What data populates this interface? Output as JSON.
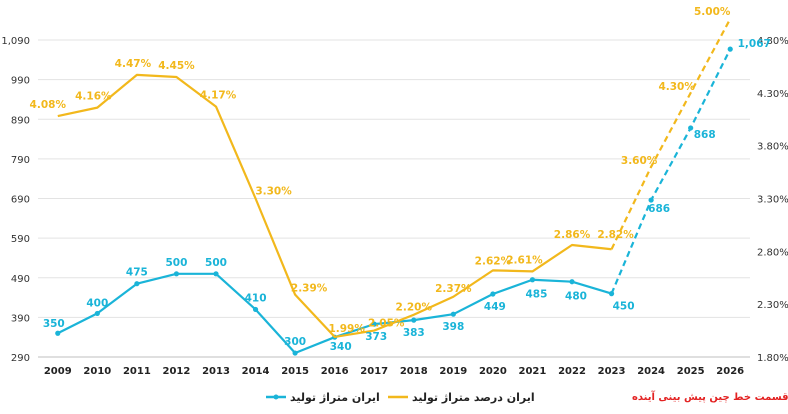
{
  "chart_data": {
    "type": "line",
    "x": [
      "2009",
      "2010",
      "2011",
      "2012",
      "2013",
      "2014",
      "2015",
      "2016",
      "2017",
      "2018",
      "2019",
      "2020",
      "2021",
      "2022",
      "2023",
      "2024",
      "2025",
      "2026"
    ],
    "left_axis": {
      "ticks": [
        "1,090",
        "990",
        "890",
        "790",
        "690",
        "590",
        "490",
        "390",
        "290"
      ],
      "min": 290,
      "max": 1090
    },
    "right_axis": {
      "ticks": [
        "4.80%",
        "4.30%",
        "3.80%",
        "3.30%",
        "2.80%",
        "2.30%",
        "1.80%"
      ],
      "min": 1.8,
      "max": 4.8
    },
    "series": [
      {
        "name": "ایران متراژ تولید",
        "axis": "left",
        "color": "#1ab4d8",
        "values": [
          350,
          400,
          475,
          500,
          500,
          410,
          300,
          340,
          373,
          383,
          398,
          449,
          485,
          480,
          450,
          686,
          868,
          1067
        ],
        "labels": [
          "350",
          "400",
          "475",
          "500",
          "500",
          "410",
          "300",
          "340",
          "373",
          "383",
          "398",
          "449",
          "485",
          "480",
          "450",
          "686",
          "868",
          "1,067"
        ],
        "forecast_from_index": 14
      },
      {
        "name": "ایران درصد متراژ تولید",
        "axis": "right",
        "color": "#f2b81c",
        "values": [
          4.08,
          4.16,
          4.47,
          4.45,
          4.17,
          3.3,
          2.39,
          1.99,
          2.05,
          2.2,
          2.37,
          2.62,
          2.61,
          2.86,
          2.82,
          3.6,
          4.3,
          5.0
        ],
        "labels": [
          "4.08%",
          "4.16%",
          "4.47%",
          "4.45%",
          "4.17%",
          "3.30%",
          "2.39%",
          "1.99%",
          "2.05%",
          "2.20%",
          "2.37%",
          "2.62%",
          "2.61%",
          "2.86%",
          "2.82%",
          "3.60%",
          "4.30%",
          "5.00%"
        ],
        "forecast_from_index": 14
      }
    ],
    "legend": {
      "position": "bottom",
      "items": [
        "ایران متراژ تولید",
        "ایران درصد متراژ تولید"
      ],
      "forecast_note": "قسمت خط چین پیش بینی آینده"
    }
  }
}
